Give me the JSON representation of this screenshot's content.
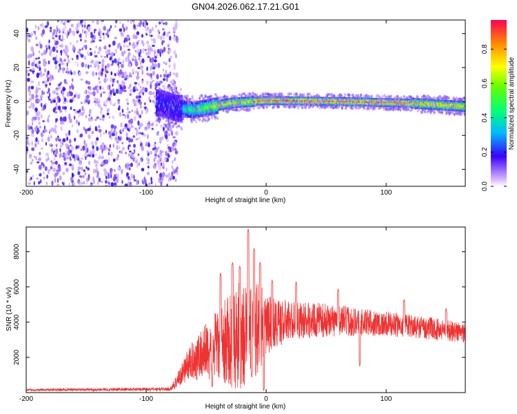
{
  "chart_data": [
    {
      "type": "heatmap",
      "title": "GN04.2026.062.17.21.G01",
      "xlabel": "Height of straight line (km)",
      "ylabel": "Frequency (Hz)",
      "xlim": [
        -200,
        166
      ],
      "ylim": [
        -50,
        48
      ],
      "xticks": [
        "-200",
        "-100",
        "0",
        "100"
      ],
      "xtick_values": [
        -200,
        -100,
        0,
        100
      ],
      "yticks": [
        "40",
        "20",
        "0",
        "-20",
        "-40"
      ],
      "ytick_values": [
        40,
        20,
        0,
        -20,
        -40
      ],
      "noise_region_km": [
        -200,
        -78
      ],
      "signal_center_hz": [
        {
          "x": -88,
          "f": -1
        },
        {
          "x": -75,
          "f": -4
        },
        {
          "x": -60,
          "f": -5
        },
        {
          "x": -45,
          "f": -3
        },
        {
          "x": -30,
          "f": -1
        },
        {
          "x": -10,
          "f": 0
        },
        {
          "x": 0,
          "f": 0.5
        },
        {
          "x": 60,
          "f": 0
        },
        {
          "x": 120,
          "f": -1
        },
        {
          "x": 166,
          "f": -3
        }
      ],
      "colorbar": {
        "label": "Normalized spectral amplitude",
        "ticks": [
          "0.8",
          "0.6",
          "0.4",
          "0.2",
          "0.0"
        ],
        "tick_values": [
          0.8,
          0.6,
          0.4,
          0.2,
          0.0
        ],
        "range": [
          0,
          0.97
        ]
      }
    },
    {
      "type": "line",
      "xlabel": "Height of straight line (km)",
      "ylabel": "SNR (10 * v/v)",
      "xlim": [
        -200,
        166
      ],
      "ylim": [
        0,
        9400
      ],
      "xticks": [
        "-200",
        "-100",
        "0",
        "100"
      ],
      "xtick_values": [
        -200,
        -100,
        0,
        100
      ],
      "yticks": [
        "8000",
        "6000",
        "4000",
        "2000"
      ],
      "ytick_values": [
        8000,
        6000,
        4000,
        2000
      ],
      "series": [
        {
          "name": "SNR",
          "color": "#ee3333",
          "envelope": [
            {
              "x": -200,
              "mean": 150,
              "amp": 60
            },
            {
              "x": -80,
              "mean": 200,
              "amp": 100
            },
            {
              "x": -75,
              "mean": 600,
              "amp": 400
            },
            {
              "x": -65,
              "mean": 1600,
              "amp": 900
            },
            {
              "x": -50,
              "mean": 2400,
              "amp": 1700
            },
            {
              "x": -35,
              "mean": 2800,
              "amp": 2400
            },
            {
              "x": -20,
              "mean": 3300,
              "amp": 3200
            },
            {
              "x": -10,
              "mean": 3700,
              "amp": 3000
            },
            {
              "x": 0,
              "mean": 3800,
              "amp": 1800
            },
            {
              "x": 20,
              "mean": 4100,
              "amp": 1100
            },
            {
              "x": 60,
              "mean": 4100,
              "amp": 900
            },
            {
              "x": 100,
              "mean": 3900,
              "amp": 700
            },
            {
              "x": 130,
              "mean": 3700,
              "amp": 650
            },
            {
              "x": 166,
              "mean": 3400,
              "amp": 600
            }
          ],
          "peaks": [
            {
              "x": -38,
              "y": 6800
            },
            {
              "x": -28,
              "y": 7400
            },
            {
              "x": -22,
              "y": 7200
            },
            {
              "x": -15,
              "y": 9300
            },
            {
              "x": -10,
              "y": 8200
            },
            {
              "x": -5,
              "y": 7400
            },
            {
              "x": 5,
              "y": 6400
            },
            {
              "x": 25,
              "y": 6300
            },
            {
              "x": 60,
              "y": 5900
            },
            {
              "x": 115,
              "y": 5300
            },
            {
              "x": 150,
              "y": 4800
            }
          ],
          "dips": [
            {
              "x": -45,
              "y": 300
            },
            {
              "x": -12,
              "y": 900
            },
            {
              "x": -2,
              "y": 100
            },
            {
              "x": 78,
              "y": 1500
            }
          ]
        }
      ]
    }
  ]
}
